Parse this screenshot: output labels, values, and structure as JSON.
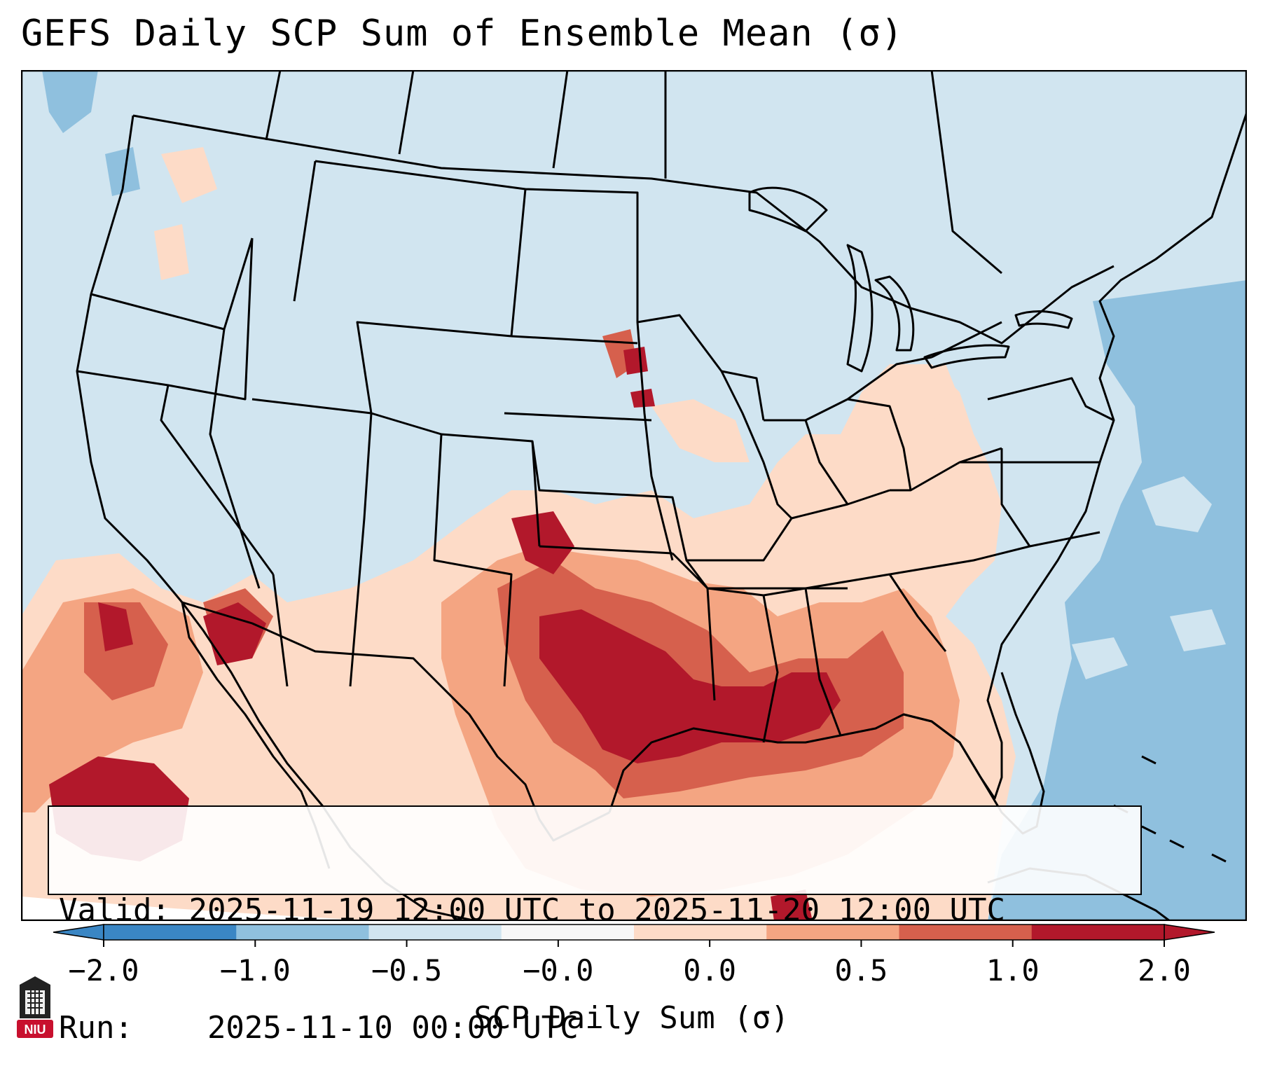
{
  "title": "GEFS Daily SCP Sum of Ensemble Mean (σ)",
  "info": {
    "valid_label": "Valid:",
    "valid_value": "2025-11-19 12:00 UTC to 2025-11-20 12:00 UTC",
    "run_label": "Run:",
    "run_value": "2025-11-10 00:00 UTC"
  },
  "colorbar": {
    "label": "SCP Daily Sum (σ)",
    "ticks": [
      "−2.0",
      "−1.0",
      "−0.5",
      "−0.0",
      "0.0",
      "0.5",
      "1.0",
      "2.0"
    ],
    "colors": [
      "#3a86c4",
      "#8fc0de",
      "#d1e5f0",
      "#f7f7f7",
      "#fddbc7",
      "#f4a582",
      "#d6604d",
      "#b2182b"
    ],
    "extend": "both"
  },
  "map": {
    "ocean_negative": "#8fc0de",
    "land_neutral": "#d1e5f0",
    "border_color": "#000000"
  },
  "logo": {
    "text": "NIU",
    "color": "#c8102e"
  }
}
